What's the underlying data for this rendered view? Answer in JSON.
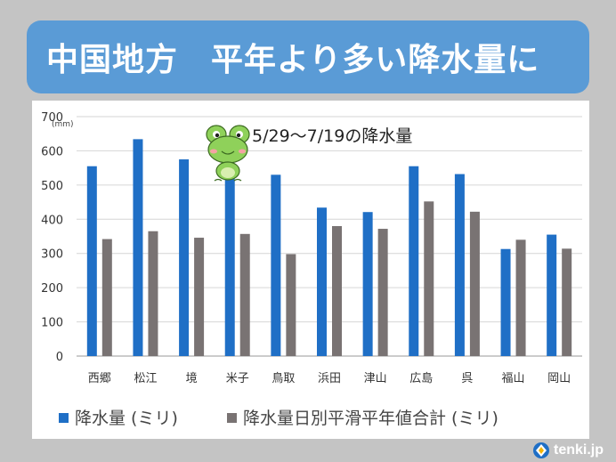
{
  "header": {
    "title": "中国地方　平年より多い降水量に"
  },
  "brand": {
    "name": "tenki.jp",
    "icon": "tenki-logo-icon"
  },
  "mascot": {
    "icon": "frog-mascot-icon"
  },
  "colors": {
    "banner": "#5a9bd6",
    "observed": "#1f6fc6",
    "normal": "#797373",
    "background": "#c4c4c4"
  },
  "chart_data": {
    "type": "bar",
    "title": "5/29～7/19の降水量",
    "unit": "(mm)",
    "categories": [
      "西郷",
      "松江",
      "境",
      "米子",
      "鳥取",
      "浜田",
      "津山",
      "広島",
      "呉",
      "福山",
      "岡山"
    ],
    "series": [
      {
        "name": "降水量 (ミリ)",
        "color": "#1f6fc6",
        "values": [
          555,
          634,
          575,
          519,
          530,
          434,
          421,
          555,
          532,
          313,
          355
        ]
      },
      {
        "name": "降水量日別平滑平年値合計 (ミリ)",
        "color": "#797373",
        "values": [
          342,
          365,
          346,
          357,
          298,
          380,
          372,
          452,
          422,
          340,
          314
        ]
      }
    ],
    "ylim": [
      0,
      700
    ],
    "yticks": [
      0,
      100,
      200,
      300,
      400,
      500,
      600,
      700
    ],
    "grid": true,
    "legend": "bottom"
  }
}
